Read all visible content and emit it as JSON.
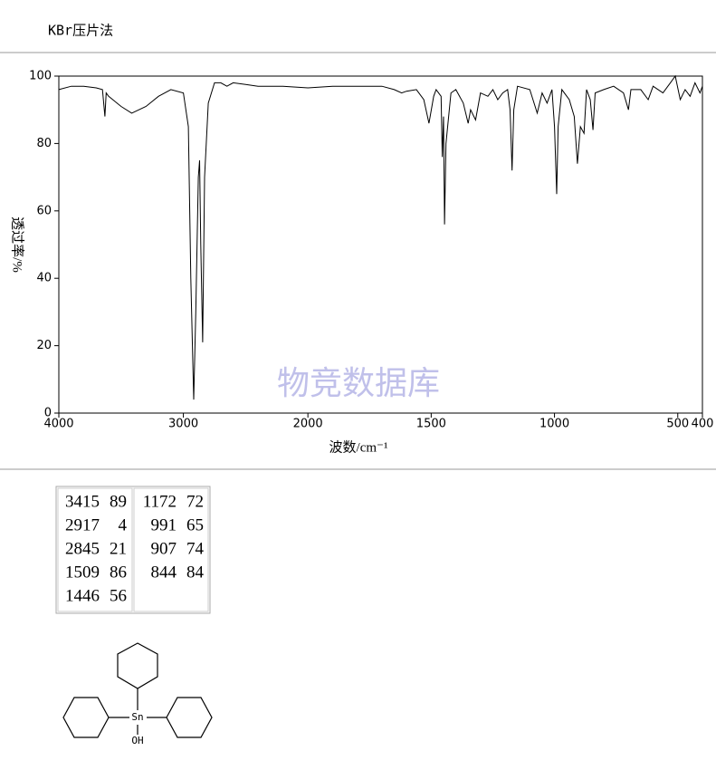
{
  "header": {
    "title": "KBr压片法"
  },
  "chart_data": {
    "type": "line",
    "xlabel": "波数/cm⁻¹",
    "ylabel": "透过率/%",
    "watermark": "物竞数据库",
    "xlim": [
      4000,
      400
    ],
    "ylim": [
      0,
      100
    ],
    "xticks": [
      4000,
      3000,
      2000,
      1500,
      1000,
      500,
      400
    ],
    "yticks": [
      0,
      20,
      40,
      60,
      80,
      100
    ],
    "color": "#000000",
    "x": [
      4000,
      3900,
      3800,
      3700,
      3650,
      3630,
      3620,
      3600,
      3500,
      3415,
      3300,
      3200,
      3100,
      3000,
      2960,
      2940,
      2917,
      2900,
      2880,
      2870,
      2860,
      2845,
      2830,
      2800,
      2750,
      2700,
      2650,
      2600,
      2500,
      2400,
      2200,
      2000,
      1900,
      1800,
      1700,
      1650,
      1620,
      1600,
      1560,
      1530,
      1509,
      1490,
      1480,
      1460,
      1455,
      1450,
      1446,
      1440,
      1420,
      1400,
      1370,
      1350,
      1340,
      1320,
      1300,
      1270,
      1250,
      1230,
      1210,
      1190,
      1180,
      1172,
      1165,
      1150,
      1100,
      1070,
      1050,
      1030,
      1010,
      1000,
      991,
      985,
      970,
      940,
      920,
      907,
      895,
      880,
      870,
      855,
      844,
      835,
      800,
      760,
      720,
      700,
      690,
      650,
      620,
      600,
      560,
      530,
      510,
      490,
      470,
      450,
      430,
      410,
      400
    ],
    "values": [
      96,
      97,
      97,
      96.5,
      96,
      88,
      95,
      94,
      91,
      89,
      91,
      94,
      96,
      95,
      85,
      40,
      4,
      30,
      70,
      75,
      50,
      21,
      70,
      92,
      98,
      98,
      97,
      98,
      97.5,
      97,
      97,
      96.5,
      97,
      97,
      97,
      96,
      95,
      95.5,
      96,
      93,
      86,
      94,
      96,
      94,
      76,
      88,
      56,
      80,
      95,
      96,
      92,
      86,
      90,
      87,
      95,
      94,
      96,
      93,
      95,
      96,
      90,
      72,
      90,
      97,
      96,
      89,
      95,
      92,
      96,
      85,
      65,
      85,
      96,
      93,
      88,
      74,
      85,
      83,
      96,
      93,
      84,
      95,
      96,
      97,
      95,
      90,
      96,
      96,
      93,
      97,
      95,
      98,
      100,
      93,
      96,
      94,
      98,
      95,
      97
    ]
  },
  "table": {
    "rows": [
      [
        3415,
        89,
        1172,
        72
      ],
      [
        2917,
        4,
        991,
        65
      ],
      [
        2845,
        21,
        907,
        74
      ],
      [
        1509,
        86,
        844,
        84
      ],
      [
        1446,
        56
      ]
    ]
  },
  "structure": {
    "atoms": [
      "Sn",
      "OH"
    ]
  }
}
